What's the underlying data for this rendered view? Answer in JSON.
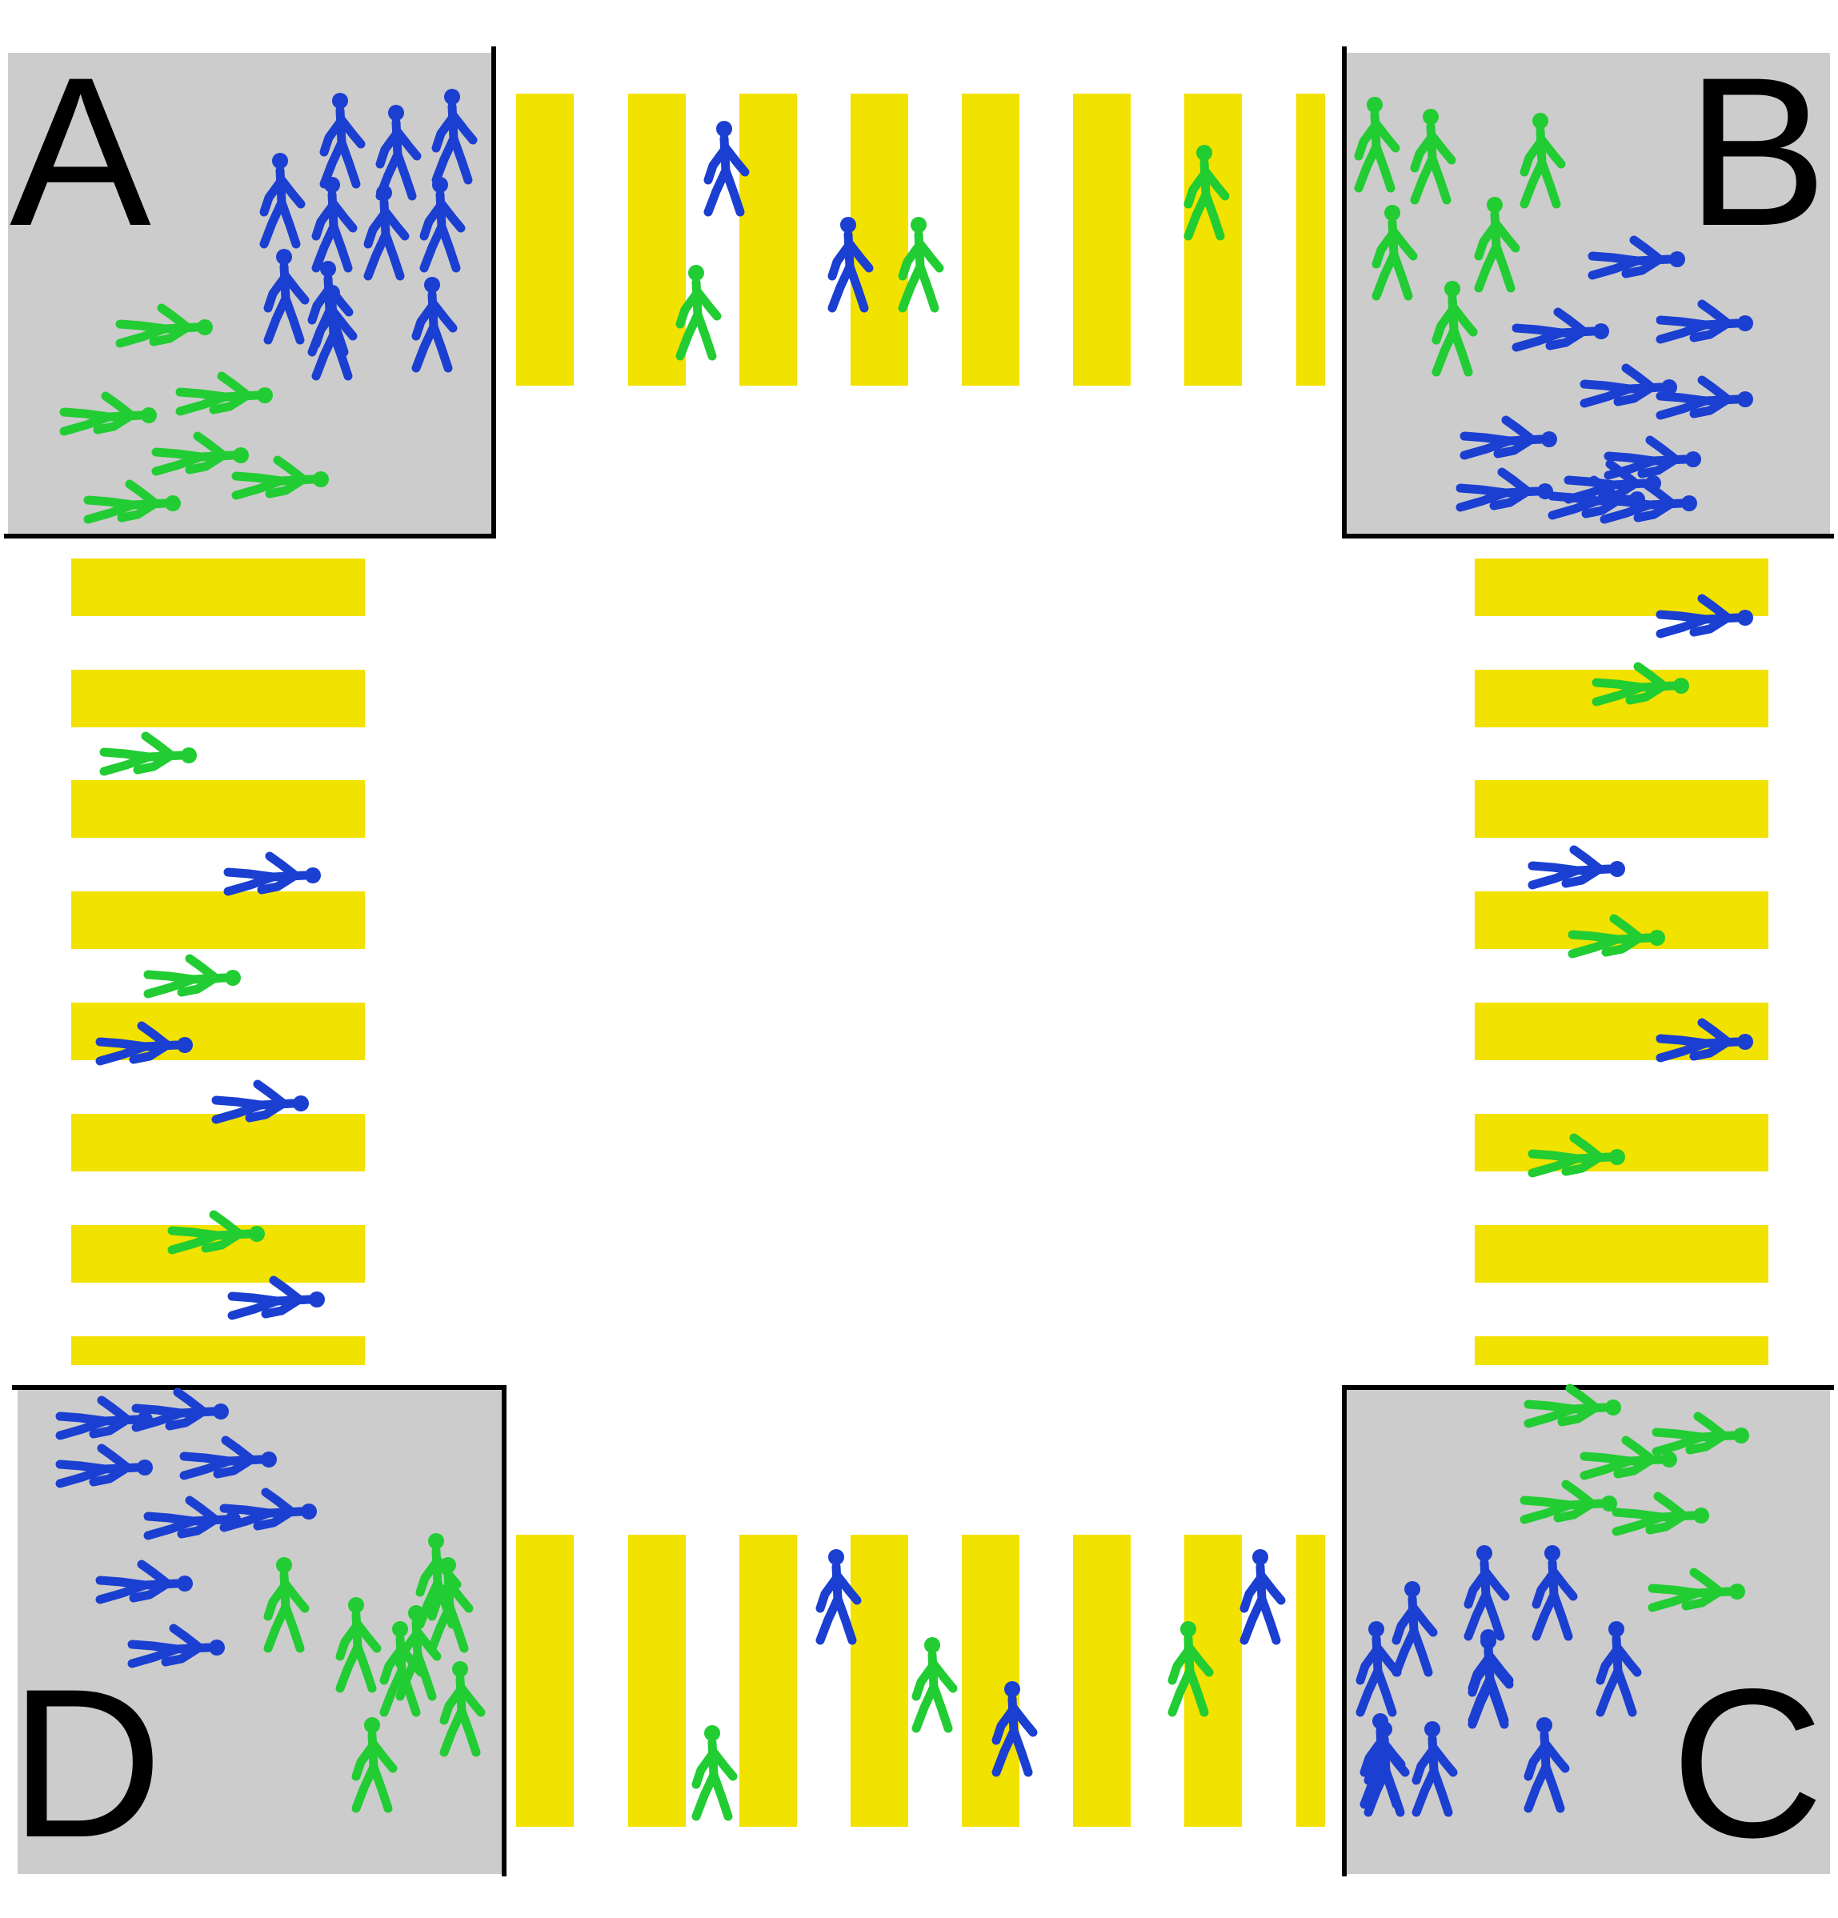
{
  "colors": {
    "corner_fill": "#cccccc",
    "stripe": "#f2e200",
    "border": "#000000",
    "group_blue": "#1a3fd1",
    "group_green": "#22cc33"
  },
  "corners": [
    {
      "id": "A",
      "label": "A"
    },
    {
      "id": "B",
      "label": "B"
    },
    {
      "id": "C",
      "label": "C"
    },
    {
      "id": "D",
      "label": "D"
    }
  ],
  "crosswalks": [
    {
      "name": "crosswalk-top",
      "between": "A-B",
      "orientation": "horizontal",
      "stripe_count": 8
    },
    {
      "name": "crosswalk-left",
      "between": "A-D",
      "orientation": "vertical",
      "stripe_count": 8
    },
    {
      "name": "crosswalk-right",
      "between": "B-C",
      "orientation": "vertical",
      "stripe_count": 8
    },
    {
      "name": "crosswalk-bottom",
      "between": "D-C",
      "orientation": "horizontal",
      "stripe_count": 8
    }
  ],
  "pedestrian_counts": {
    "corner_A": {
      "blue": 12,
      "green": 6
    },
    "corner_B": {
      "blue": 11,
      "green": 7
    },
    "corner_C": {
      "blue": 11,
      "green": 7
    },
    "corner_D": {
      "blue": 8,
      "green": 8
    },
    "crosswalk_top": {
      "blue": 2,
      "green": 3
    },
    "crosswalk_left": {
      "blue": 4,
      "green": 3
    },
    "crosswalk_right": {
      "blue": 3,
      "green": 3
    },
    "crosswalk_bottom": {
      "blue": 3,
      "green": 3
    }
  },
  "icons": {
    "pedestrian": "walking-person-icon"
  }
}
